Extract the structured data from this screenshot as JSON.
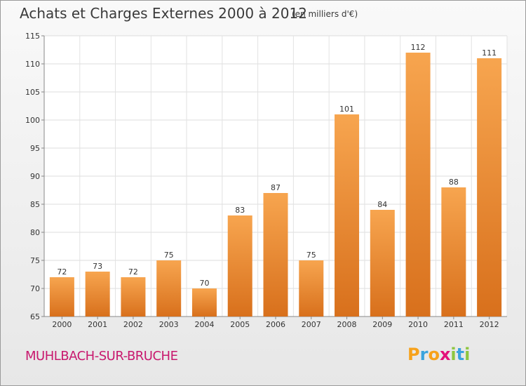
{
  "header": {
    "title": "Achats et Charges Externes 2000 à 2012",
    "unit": "(en milliers d'€)"
  },
  "footer": {
    "commune": "MUHLBACH-SUR-BRUCHE",
    "logo_letters": [
      "P",
      "r",
      "o",
      "x",
      "i",
      "t",
      "i"
    ],
    "logo_colors": [
      "#f7a21b",
      "#3aa3dd",
      "#f7a21b",
      "#e3117a",
      "#8dc63f",
      "#3aa3dd",
      "#8dc63f"
    ]
  },
  "chart_data": {
    "type": "bar",
    "categories": [
      "2000",
      "2001",
      "2002",
      "2003",
      "2004",
      "2005",
      "2006",
      "2007",
      "2008",
      "2009",
      "2010",
      "2011",
      "2012"
    ],
    "values": [
      72,
      73,
      72,
      75,
      70,
      83,
      87,
      75,
      101,
      84,
      112,
      88,
      111
    ],
    "data_labels": [
      "72",
      "73",
      "72",
      "75",
      "70",
      "83",
      "87",
      "75",
      "101",
      "84",
      "112",
      "88",
      "111"
    ],
    "y_ticks": [
      65,
      70,
      75,
      80,
      85,
      90,
      95,
      100,
      105,
      110,
      115
    ],
    "ylim": [
      65,
      115
    ],
    "grid": true,
    "bar_color_top": "#f7a54f",
    "bar_color_bottom": "#d8701c"
  }
}
